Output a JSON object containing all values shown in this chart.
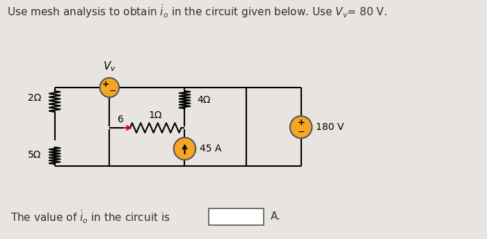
{
  "background_color": "#e8e4df",
  "wire_color": "#000000",
  "source_fill": "#f5a623",
  "source_edge": "#555555",
  "label_2ohm": "2Ω",
  "label_5ohm": "5Ω",
  "label_4ohm": "4Ω",
  "label_1ohm": "1Ω",
  "label_45A": "45 A",
  "label_180V": "180 V",
  "label_Vv": "V_v",
  "label_6": "6",
  "label_plus": "+",
  "label_minus": "-",
  "title": "Use mesh analysis to obtain $\\dot{i}_o$ in the circuit given below. Use $V_v$= 80 V.",
  "bottom_text": "The value of $\\dot{i}_o$ in the circuit is",
  "bottom_A": "A.",
  "font_size_title": 11,
  "font_size_label": 10,
  "font_size_small": 8
}
